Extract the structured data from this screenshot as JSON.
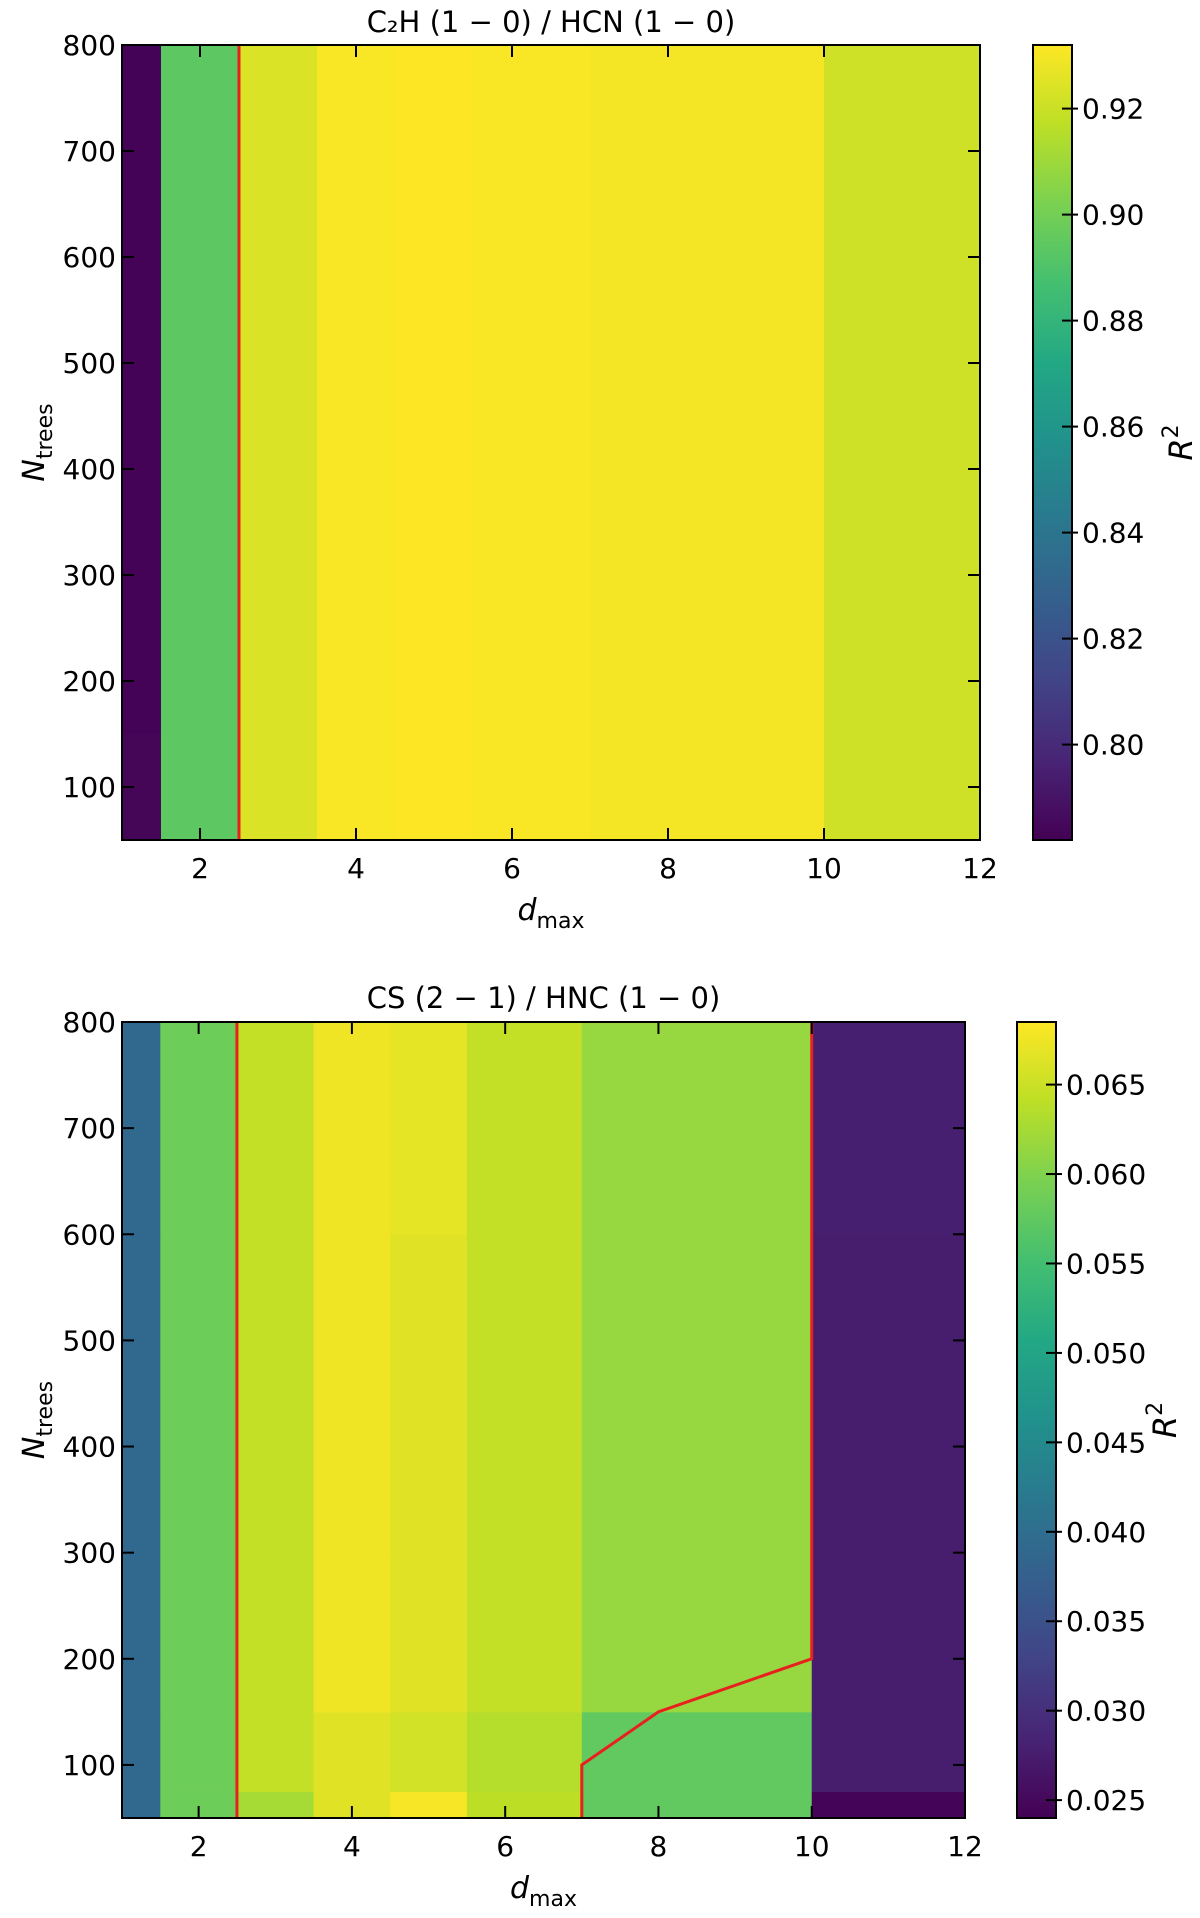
{
  "chart_data": [
    {
      "type": "heatmap",
      "title": "C₂H (1 − 0) / HCN (1 − 0)",
      "xlabel_main": "d",
      "xlabel_sub": "max",
      "ylabel_main": "N",
      "ylabel_sub": "trees",
      "colorbar_label": "R",
      "colorbar_label_sup": "2",
      "x_edges": [
        1,
        1.5,
        2.5,
        3.5,
        4.5,
        5.5,
        7,
        10,
        12
      ],
      "y_edges": [
        50,
        75,
        150,
        300,
        500,
        800
      ],
      "xlim": [
        1,
        12
      ],
      "ylim": [
        50,
        800
      ],
      "xticks": [
        2,
        4,
        6,
        8,
        10,
        12
      ],
      "yticks": [
        100,
        200,
        300,
        400,
        500,
        600,
        700,
        800
      ],
      "vmin": 0.782,
      "vmax": 0.932,
      "cbar_ticks": [
        0.8,
        0.82,
        0.84,
        0.86,
        0.88,
        0.9,
        0.92
      ],
      "cbar_tick_labels": [
        "0.80",
        "0.82",
        "0.84",
        "0.86",
        "0.88",
        "0.90",
        "0.92"
      ],
      "values": [
        [
          0.784,
          0.894,
          0.924,
          0.931,
          0.932,
          0.931,
          0.93,
          0.921
        ],
        [
          0.784,
          0.894,
          0.924,
          0.931,
          0.932,
          0.931,
          0.93,
          0.921
        ],
        [
          0.783,
          0.894,
          0.924,
          0.931,
          0.932,
          0.931,
          0.93,
          0.921
        ],
        [
          0.783,
          0.894,
          0.924,
          0.931,
          0.932,
          0.931,
          0.93,
          0.921
        ],
        [
          0.783,
          0.894,
          0.924,
          0.931,
          0.932,
          0.931,
          0.93,
          0.921
        ]
      ],
      "contour": [
        [
          [
            2.5,
            50
          ],
          [
            2.5,
            800
          ]
        ]
      ],
      "contour_color": "#e8211e"
    },
    {
      "type": "heatmap",
      "title": "CS (2 − 1) / HNC (1 − 0)",
      "xlabel_main": "d",
      "xlabel_sub": "max",
      "ylabel_main": "N",
      "ylabel_sub": "trees",
      "colorbar_label": "R",
      "colorbar_label_sup": "2",
      "x_edges": [
        1,
        1.5,
        2.5,
        3.5,
        4.5,
        5.5,
        7,
        10,
        12
      ],
      "y_edges": [
        50,
        75,
        150,
        300,
        500,
        600,
        800
      ],
      "xlim": [
        1,
        12
      ],
      "ylim": [
        50,
        800
      ],
      "xticks": [
        2,
        4,
        6,
        8,
        10,
        12
      ],
      "yticks": [
        100,
        200,
        300,
        400,
        500,
        600,
        700,
        800
      ],
      "vmin": 0.024,
      "vmax": 0.0685,
      "cbar_ticks": [
        0.025,
        0.03,
        0.035,
        0.04,
        0.045,
        0.05,
        0.055,
        0.06,
        0.065
      ],
      "cbar_tick_labels": [
        "0.025",
        "0.030",
        "0.035",
        "0.040",
        "0.045",
        "0.050",
        "0.055",
        "0.060",
        "0.065"
      ],
      "values": [
        [
          0.039,
          0.0585,
          0.0625,
          0.0665,
          0.068,
          0.064,
          0.0575,
          0.0245
        ],
        [
          0.039,
          0.0585,
          0.0645,
          0.0665,
          0.0655,
          0.0635,
          0.0575,
          0.0275
        ],
        [
          0.039,
          0.0585,
          0.0645,
          0.0675,
          0.0665,
          0.0645,
          0.0615,
          0.0275
        ],
        [
          0.039,
          0.0585,
          0.0645,
          0.0675,
          0.0665,
          0.0645,
          0.0615,
          0.0275
        ],
        [
          0.039,
          0.0585,
          0.0645,
          0.0675,
          0.0665,
          0.0645,
          0.0615,
          0.0275
        ],
        [
          0.039,
          0.0585,
          0.0645,
          0.0675,
          0.0668,
          0.0645,
          0.0615,
          0.0278
        ]
      ],
      "contour": [
        [
          [
            2.5,
            50
          ],
          [
            2.5,
            800
          ]
        ],
        [
          [
            7,
            50
          ],
          [
            7,
            100
          ],
          [
            8,
            150
          ],
          [
            10,
            200
          ],
          [
            10,
            800
          ]
        ]
      ],
      "contour_color": "#e8211e"
    }
  ]
}
